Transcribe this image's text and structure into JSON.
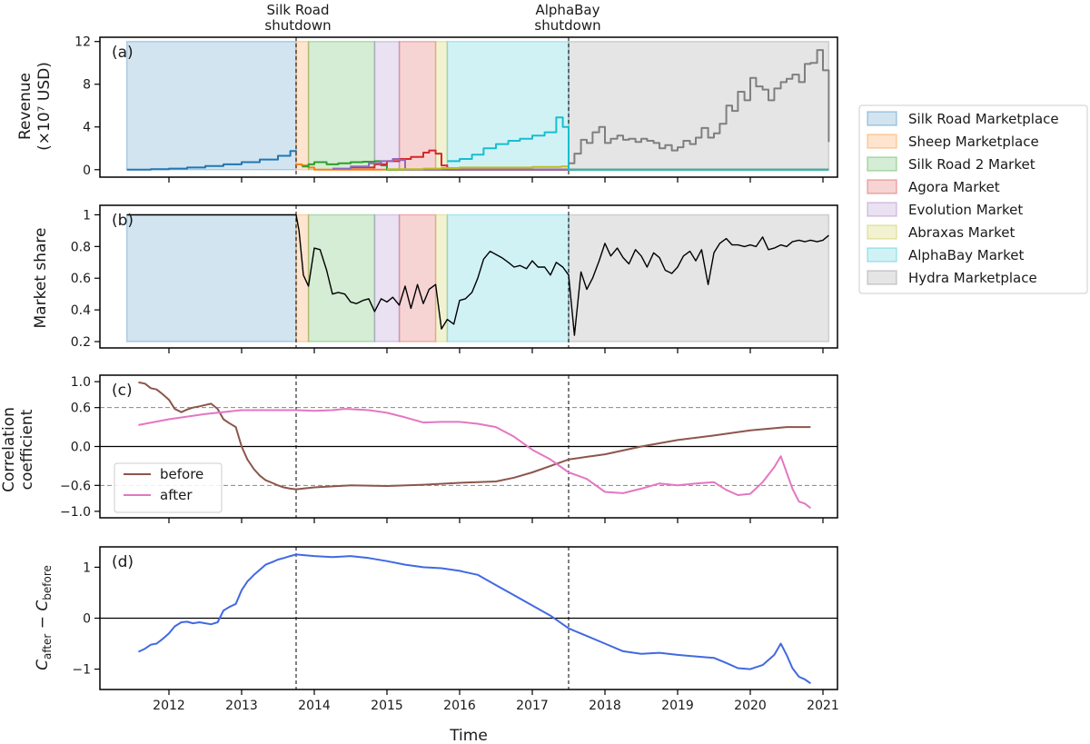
{
  "figure": {
    "x_title": "Time",
    "x_ticks": [
      2012,
      2013,
      2014,
      2015,
      2016,
      2017,
      2018,
      2019,
      2020,
      2021
    ],
    "x_range": [
      2011.05,
      2021.2
    ],
    "shutdowns": [
      {
        "label_line1": "Silk Road",
        "label_line2": "shutdown",
        "x": 2013.75
      },
      {
        "label_line1": "AlphaBay",
        "label_line2": "shutdown",
        "x": 2017.5
      }
    ]
  },
  "markets": [
    {
      "name": "Silk Road Marketplace",
      "color": "#1f77b4",
      "start": 2011.42,
      "end": 2013.75
    },
    {
      "name": "Sheep Marketplace",
      "color": "#ff7f0e",
      "start": 2013.75,
      "end": 2013.92
    },
    {
      "name": "Silk Road 2 Market",
      "color": "#2ca02c",
      "start": 2013.92,
      "end": 2014.83
    },
    {
      "name": "Agora Market",
      "color": "#d62728",
      "start": 2015.17,
      "end": 2015.67
    },
    {
      "name": "Evolution Market",
      "color": "#9467bd",
      "start": 2014.83,
      "end": 2015.17
    },
    {
      "name": "Abraxas Market",
      "color": "#bcbd22",
      "start": 2015.67,
      "end": 2015.83
    },
    {
      "name": "AlphaBay Market",
      "color": "#17becf",
      "start": 2015.83,
      "end": 2017.5
    },
    {
      "name": "Hydra Marketplace",
      "color": "#7f7f7f",
      "start": 2017.5,
      "end": 2021.08
    }
  ],
  "chart_data": [
    {
      "panel": "(a)",
      "type": "line",
      "step": true,
      "ylabel_line1": "Revenue",
      "ylabel_line2": "(×10⁷ USD)",
      "ylim": [
        -0.7,
        12.4
      ],
      "yticks": [
        0,
        4,
        8,
        12
      ],
      "band_range": [
        0,
        12
      ],
      "series": [
        {
          "name": "Silk Road Marketplace",
          "color": "#1f77b4",
          "x": [
            2011.42,
            2011.75,
            2012.0,
            2012.25,
            2012.5,
            2012.75,
            2013.0,
            2013.25,
            2013.5,
            2013.67,
            2013.75
          ],
          "y": [
            0.0,
            0.05,
            0.1,
            0.2,
            0.35,
            0.5,
            0.7,
            0.95,
            1.3,
            1.75,
            1.8
          ]
        },
        {
          "name": "Sheep Marketplace",
          "color": "#ff7f0e",
          "x": [
            2013.75,
            2013.83,
            2013.92,
            2014.0,
            2014.5,
            2015.0,
            2015.5,
            2016.0,
            2017.0,
            2021.08
          ],
          "y": [
            0.5,
            0.4,
            0.2,
            0.0,
            0.0,
            0.0,
            0.0,
            0.0,
            0.0,
            0.0
          ]
        },
        {
          "name": "Silk Road 2 Market",
          "color": "#2ca02c",
          "x": [
            2013.83,
            2013.92,
            2014.0,
            2014.17,
            2014.33,
            2014.5,
            2014.67,
            2014.83,
            2014.92,
            2015.0,
            2021.08
          ],
          "y": [
            0.3,
            0.5,
            0.7,
            0.5,
            0.6,
            0.7,
            0.75,
            0.8,
            0.4,
            0.0,
            0.0
          ]
        },
        {
          "name": "Agora Market",
          "color": "#d62728",
          "x": [
            2014.5,
            2014.83,
            2015.0,
            2015.17,
            2015.33,
            2015.5,
            2015.58,
            2015.67,
            2015.75,
            2015.83,
            2021.08
          ],
          "y": [
            0.2,
            0.5,
            0.8,
            1.0,
            1.2,
            1.6,
            1.8,
            1.5,
            0.4,
            0.0,
            0.0
          ]
        },
        {
          "name": "Evolution Market",
          "color": "#9467bd",
          "x": [
            2014.25,
            2014.5,
            2014.75,
            2014.92,
            2015.08,
            2015.17,
            2015.25,
            2021.08
          ],
          "y": [
            0.1,
            0.3,
            0.6,
            0.8,
            1.0,
            0.9,
            0.0,
            0.0
          ]
        },
        {
          "name": "Abraxas Market",
          "color": "#bcbd22",
          "x": [
            2015.0,
            2015.5,
            2015.75,
            2016.0,
            2016.5,
            2017.0,
            2017.4,
            2017.5,
            2021.08
          ],
          "y": [
            0.05,
            0.1,
            0.15,
            0.2,
            0.2,
            0.25,
            0.3,
            0.0,
            0.0
          ]
        },
        {
          "name": "AlphaBay Market",
          "color": "#17becf",
          "x": [
            2015.83,
            2016.0,
            2016.17,
            2016.33,
            2016.5,
            2016.67,
            2016.83,
            2017.0,
            2017.17,
            2017.33,
            2017.42,
            2017.5,
            2021.08
          ],
          "y": [
            0.8,
            1.0,
            1.4,
            2.0,
            2.4,
            2.7,
            2.9,
            3.2,
            3.5,
            4.9,
            4.0,
            0.0,
            0.0
          ]
        },
        {
          "name": "Hydra Marketplace",
          "color": "#7f7f7f",
          "x": [
            2017.5,
            2017.58,
            2017.67,
            2017.75,
            2017.83,
            2017.92,
            2018.0,
            2018.08,
            2018.17,
            2018.25,
            2018.33,
            2018.42,
            2018.5,
            2018.58,
            2018.67,
            2018.75,
            2018.83,
            2018.92,
            2019.0,
            2019.08,
            2019.17,
            2019.25,
            2019.33,
            2019.42,
            2019.5,
            2019.58,
            2019.67,
            2019.75,
            2019.83,
            2019.92,
            2020.0,
            2020.08,
            2020.17,
            2020.25,
            2020.33,
            2020.42,
            2020.5,
            2020.58,
            2020.67,
            2020.75,
            2020.83,
            2020.92,
            2021.0,
            2021.08
          ],
          "y": [
            0.6,
            1.5,
            2.8,
            2.5,
            3.5,
            4.0,
            2.5,
            2.9,
            3.2,
            2.8,
            2.9,
            2.6,
            2.9,
            2.7,
            2.5,
            2.0,
            2.3,
            1.8,
            2.1,
            2.7,
            2.4,
            3.0,
            3.9,
            3.0,
            3.4,
            4.3,
            6.0,
            5.5,
            7.3,
            6.5,
            8.6,
            7.8,
            7.5,
            6.5,
            7.6,
            8.2,
            8.5,
            8.9,
            8.2,
            9.9,
            10.0,
            11.2,
            9.3,
            2.6
          ]
        }
      ]
    },
    {
      "panel": "(b)",
      "type": "line",
      "ylabel": "Market share",
      "ylim": [
        0.16,
        1.06
      ],
      "yticks": [
        0.2,
        0.4,
        0.6,
        0.8,
        1.0
      ],
      "band_range": [
        0.2,
        1.0
      ],
      "series": [
        {
          "name": "Market share",
          "color": "#000000",
          "x": [
            2011.42,
            2013.75,
            2013.79,
            2013.85,
            2013.92,
            2014.0,
            2014.08,
            2014.17,
            2014.25,
            2014.33,
            2014.42,
            2014.5,
            2014.58,
            2014.67,
            2014.75,
            2014.83,
            2014.92,
            2015.0,
            2015.08,
            2015.17,
            2015.25,
            2015.33,
            2015.42,
            2015.5,
            2015.58,
            2015.67,
            2015.75,
            2015.83,
            2015.92,
            2016.0,
            2016.08,
            2016.17,
            2016.25,
            2016.33,
            2016.42,
            2016.5,
            2016.58,
            2016.67,
            2016.75,
            2016.83,
            2016.92,
            2017.0,
            2017.08,
            2017.17,
            2017.25,
            2017.33,
            2017.42,
            2017.5,
            2017.58,
            2017.67,
            2017.75,
            2017.83,
            2017.92,
            2018.0,
            2018.08,
            2018.17,
            2018.25,
            2018.33,
            2018.42,
            2018.5,
            2018.58,
            2018.67,
            2018.75,
            2018.83,
            2018.92,
            2019.0,
            2019.08,
            2019.17,
            2019.25,
            2019.33,
            2019.42,
            2019.5,
            2019.58,
            2019.67,
            2019.75,
            2019.83,
            2019.92,
            2020.0,
            2020.08,
            2020.17,
            2020.25,
            2020.33,
            2020.42,
            2020.5,
            2020.58,
            2020.67,
            2020.75,
            2020.83,
            2020.92,
            2021.0,
            2021.08
          ],
          "y": [
            1.0,
            1.0,
            0.9,
            0.62,
            0.55,
            0.79,
            0.78,
            0.65,
            0.5,
            0.51,
            0.5,
            0.45,
            0.44,
            0.46,
            0.47,
            0.39,
            0.47,
            0.45,
            0.48,
            0.43,
            0.55,
            0.41,
            0.56,
            0.44,
            0.53,
            0.56,
            0.28,
            0.34,
            0.31,
            0.46,
            0.47,
            0.51,
            0.6,
            0.72,
            0.77,
            0.75,
            0.73,
            0.7,
            0.67,
            0.68,
            0.66,
            0.71,
            0.67,
            0.67,
            0.62,
            0.7,
            0.67,
            0.62,
            0.24,
            0.64,
            0.53,
            0.6,
            0.71,
            0.82,
            0.74,
            0.79,
            0.73,
            0.69,
            0.78,
            0.74,
            0.67,
            0.76,
            0.73,
            0.65,
            0.63,
            0.67,
            0.74,
            0.77,
            0.71,
            0.78,
            0.56,
            0.76,
            0.82,
            0.85,
            0.81,
            0.81,
            0.8,
            0.81,
            0.8,
            0.86,
            0.78,
            0.79,
            0.81,
            0.8,
            0.83,
            0.84,
            0.83,
            0.84,
            0.83,
            0.84,
            0.87
          ]
        }
      ]
    },
    {
      "panel": "(c)",
      "type": "line",
      "ylabel_line1": "Correlation",
      "ylabel_line2": "coefficient",
      "ylim": [
        -1.1,
        1.1
      ],
      "yticks": [
        -1.0,
        -0.6,
        0.0,
        0.6,
        1.0
      ],
      "ytick_labels": [
        "−1.0",
        "−0.6",
        "0.0",
        "0.6",
        "1.0"
      ],
      "hlines_solid": [
        0.0
      ],
      "hlines_dashed": [
        0.6,
        -0.6
      ],
      "legend": "lower-left",
      "series": [
        {
          "name": "before",
          "color": "#8c564b",
          "x": [
            2011.58,
            2011.67,
            2011.75,
            2011.83,
            2011.92,
            2012.0,
            2012.08,
            2012.17,
            2012.25,
            2012.33,
            2012.42,
            2012.5,
            2012.58,
            2012.67,
            2012.75,
            2012.83,
            2012.92,
            2013.0,
            2013.08,
            2013.17,
            2013.25,
            2013.33,
            2013.42,
            2013.5,
            2013.58,
            2013.67,
            2013.75,
            2014.0,
            2014.5,
            2015.0,
            2015.5,
            2016.0,
            2016.5,
            2016.75,
            2017.0,
            2017.25,
            2017.5,
            2017.75,
            2018.0,
            2018.5,
            2019.0,
            2019.5,
            2020.0,
            2020.5,
            2020.83
          ],
          "y": [
            0.99,
            0.97,
            0.9,
            0.88,
            0.8,
            0.72,
            0.58,
            0.53,
            0.57,
            0.6,
            0.62,
            0.64,
            0.66,
            0.58,
            0.42,
            0.36,
            0.3,
            0.0,
            -0.2,
            -0.35,
            -0.45,
            -0.52,
            -0.56,
            -0.6,
            -0.63,
            -0.65,
            -0.66,
            -0.63,
            -0.6,
            -0.61,
            -0.59,
            -0.56,
            -0.54,
            -0.48,
            -0.4,
            -0.3,
            -0.2,
            -0.16,
            -0.12,
            0.0,
            0.1,
            0.17,
            0.25,
            0.3,
            0.3
          ]
        },
        {
          "name": "after",
          "color": "#e377c2",
          "x": [
            2011.58,
            2012.0,
            2012.5,
            2013.0,
            2013.5,
            2013.75,
            2014.0,
            2014.25,
            2014.42,
            2014.75,
            2015.0,
            2015.25,
            2015.5,
            2015.75,
            2016.0,
            2016.25,
            2016.5,
            2016.75,
            2017.0,
            2017.25,
            2017.5,
            2017.75,
            2018.0,
            2018.25,
            2018.5,
            2018.75,
            2019.0,
            2019.25,
            2019.5,
            2019.67,
            2019.83,
            2020.0,
            2020.17,
            2020.33,
            2020.42,
            2020.5,
            2020.58,
            2020.67,
            2020.75,
            2020.83
          ],
          "y": [
            0.33,
            0.42,
            0.5,
            0.56,
            0.56,
            0.56,
            0.55,
            0.56,
            0.58,
            0.56,
            0.52,
            0.45,
            0.37,
            0.38,
            0.38,
            0.35,
            0.3,
            0.15,
            -0.05,
            -0.2,
            -0.4,
            -0.5,
            -0.7,
            -0.72,
            -0.65,
            -0.57,
            -0.6,
            -0.57,
            -0.55,
            -0.67,
            -0.75,
            -0.73,
            -0.55,
            -0.32,
            -0.15,
            -0.4,
            -0.65,
            -0.85,
            -0.88,
            -0.95
          ]
        }
      ]
    },
    {
      "panel": "(d)",
      "type": "line",
      "ylabel_main": "C",
      "ylabel_sub_after": "after",
      "ylabel_minus": " − ",
      "ylabel_sub_before": "before",
      "ylim": [
        -1.4,
        1.4
      ],
      "yticks": [
        -1,
        0,
        1
      ],
      "ytick_labels": [
        "−1",
        "0",
        "1"
      ],
      "hlines_solid": [
        0
      ],
      "series": [
        {
          "name": "C_after - C_before",
          "color": "#4169e1",
          "x": [
            2011.58,
            2011.67,
            2011.75,
            2011.83,
            2011.92,
            2012.0,
            2012.08,
            2012.17,
            2012.25,
            2012.33,
            2012.42,
            2012.5,
            2012.58,
            2012.67,
            2012.75,
            2012.83,
            2012.92,
            2013.0,
            2013.08,
            2013.17,
            2013.25,
            2013.33,
            2013.42,
            2013.5,
            2013.58,
            2013.67,
            2013.75,
            2014.0,
            2014.25,
            2014.5,
            2014.75,
            2015.0,
            2015.25,
            2015.5,
            2015.75,
            2016.0,
            2016.25,
            2016.5,
            2016.75,
            2017.0,
            2017.25,
            2017.5,
            2017.75,
            2018.0,
            2018.25,
            2018.5,
            2018.75,
            2019.0,
            2019.25,
            2019.5,
            2019.67,
            2019.83,
            2020.0,
            2020.17,
            2020.33,
            2020.42,
            2020.5,
            2020.58,
            2020.67,
            2020.75,
            2020.83
          ],
          "y": [
            -0.66,
            -0.6,
            -0.52,
            -0.5,
            -0.4,
            -0.3,
            -0.16,
            -0.08,
            -0.07,
            -0.1,
            -0.08,
            -0.1,
            -0.12,
            -0.08,
            0.15,
            0.22,
            0.28,
            0.55,
            0.72,
            0.85,
            0.95,
            1.05,
            1.1,
            1.15,
            1.18,
            1.22,
            1.25,
            1.22,
            1.2,
            1.22,
            1.18,
            1.12,
            1.05,
            1.0,
            0.98,
            0.93,
            0.85,
            0.65,
            0.45,
            0.25,
            0.05,
            -0.2,
            -0.35,
            -0.5,
            -0.65,
            -0.7,
            -0.68,
            -0.72,
            -0.75,
            -0.78,
            -0.88,
            -0.98,
            -1.0,
            -0.92,
            -0.72,
            -0.5,
            -0.72,
            -0.98,
            -1.15,
            -1.2,
            -1.28
          ]
        }
      ]
    }
  ]
}
